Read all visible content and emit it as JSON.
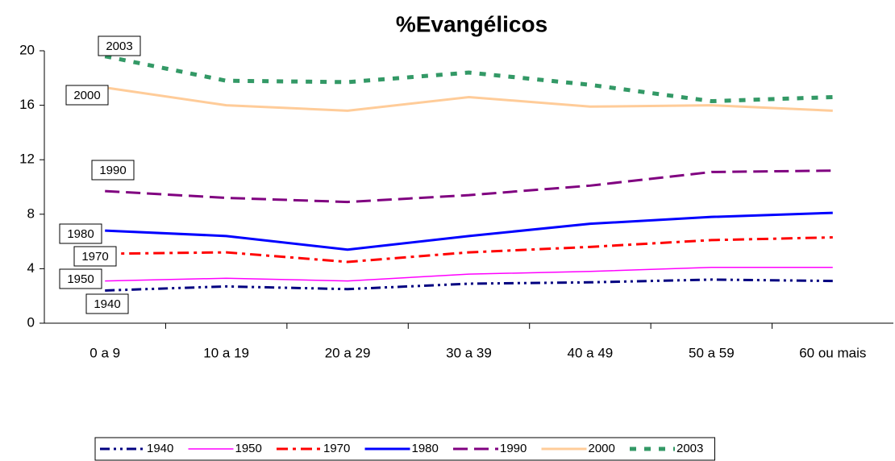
{
  "chart_data": {
    "type": "line",
    "title": "%Evangélicos",
    "categories": [
      "0 a 9",
      "10 a 19",
      "20 a 29",
      "30 a 39",
      "40 a 49",
      "50 a 59",
      "60 ou mais"
    ],
    "ylim": [
      0,
      20
    ],
    "yticks": [
      0,
      4,
      8,
      12,
      16,
      20
    ],
    "legend": "bottom",
    "series": [
      {
        "name": "1940",
        "color": "#000080",
        "values": [
          2.4,
          2.7,
          2.5,
          2.9,
          3.0,
          3.2,
          3.1
        ]
      },
      {
        "name": "1950",
        "color": "#ff00ff",
        "values": [
          3.1,
          3.3,
          3.1,
          3.6,
          3.8,
          4.1,
          4.1
        ]
      },
      {
        "name": "1970",
        "color": "#ff0000",
        "values": [
          5.1,
          5.2,
          4.5,
          5.2,
          5.6,
          6.1,
          6.3
        ]
      },
      {
        "name": "1980",
        "color": "#0000ff",
        "values": [
          6.8,
          6.4,
          5.4,
          6.4,
          7.3,
          7.8,
          8.1
        ]
      },
      {
        "name": "1990",
        "color": "#800080",
        "values": [
          9.7,
          9.2,
          8.9,
          9.4,
          10.1,
          11.1,
          11.2
        ]
      },
      {
        "name": "2000",
        "color": "#ffcc99",
        "values": [
          17.3,
          16.0,
          15.6,
          16.6,
          15.9,
          16.0,
          15.6
        ]
      },
      {
        "name": "2003",
        "color": "#339966",
        "values": [
          19.6,
          17.8,
          17.7,
          18.4,
          17.5,
          16.3,
          16.6
        ]
      }
    ]
  }
}
